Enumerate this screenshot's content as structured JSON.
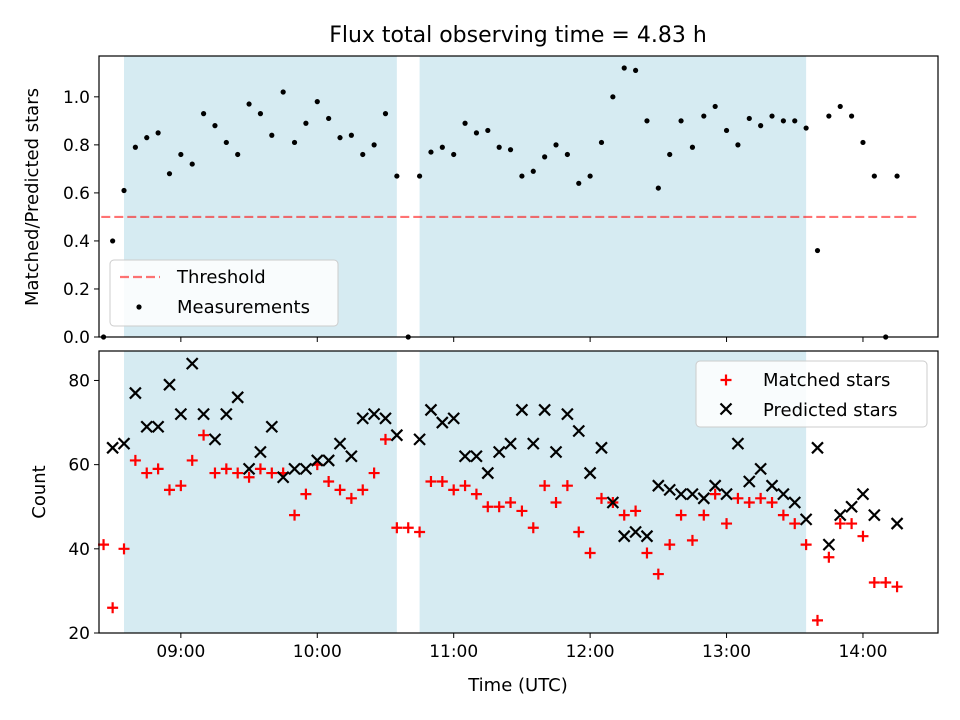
{
  "title": "Flux total observing time = 4.83 h",
  "colors": {
    "shade": "#add8e6",
    "threshold": "#ff0000",
    "measurements": "#000000",
    "matched": "#ff0000",
    "predicted": "#000000"
  },
  "chart_data": [
    {
      "type": "scatter",
      "ylabel": "Matched/Predicted stars",
      "xlim": [
        "08:24",
        "14:33"
      ],
      "ylim": [
        0,
        1.17
      ],
      "yticks": [
        "0.0",
        "0.2",
        "0.4",
        "0.6",
        "0.8",
        "1.0"
      ],
      "legend": {
        "position": "lower-left",
        "entries": [
          "Threshold",
          "Measurements"
        ]
      },
      "shaded_intervals": [
        [
          "08:35",
          "10:35"
        ],
        [
          "10:45",
          "13:35"
        ]
      ],
      "threshold": {
        "name": "Threshold",
        "y": 0.5,
        "x_range": [
          "08:25",
          "14:25"
        ]
      },
      "series": [
        {
          "name": "Measurements",
          "marker": "dot",
          "points": [
            [
              "08:26",
              0.0
            ],
            [
              "08:30",
              0.4
            ],
            [
              "08:35",
              0.61
            ],
            [
              "08:40",
              0.79
            ],
            [
              "08:45",
              0.83
            ],
            [
              "08:50",
              0.85
            ],
            [
              "08:55",
              0.68
            ],
            [
              "09:00",
              0.76
            ],
            [
              "09:05",
              0.72
            ],
            [
              "09:10",
              0.93
            ],
            [
              "09:15",
              0.88
            ],
            [
              "09:20",
              0.81
            ],
            [
              "09:25",
              0.76
            ],
            [
              "09:30",
              0.97
            ],
            [
              "09:35",
              0.93
            ],
            [
              "09:40",
              0.84
            ],
            [
              "09:45",
              1.02
            ],
            [
              "09:50",
              0.81
            ],
            [
              "09:55",
              0.89
            ],
            [
              "10:00",
              0.98
            ],
            [
              "10:05",
              0.91
            ],
            [
              "10:10",
              0.83
            ],
            [
              "10:15",
              0.84
            ],
            [
              "10:20",
              0.76
            ],
            [
              "10:25",
              0.8
            ],
            [
              "10:30",
              0.93
            ],
            [
              "10:35",
              0.67
            ],
            [
              "10:40",
              0.0
            ],
            [
              "10:45",
              0.67
            ],
            [
              "10:50",
              0.77
            ],
            [
              "10:55",
              0.79
            ],
            [
              "11:00",
              0.76
            ],
            [
              "11:05",
              0.89
            ],
            [
              "11:10",
              0.85
            ],
            [
              "11:15",
              0.86
            ],
            [
              "11:20",
              0.79
            ],
            [
              "11:25",
              0.78
            ],
            [
              "11:30",
              0.67
            ],
            [
              "11:35",
              0.69
            ],
            [
              "11:40",
              0.75
            ],
            [
              "11:45",
              0.8
            ],
            [
              "11:50",
              0.76
            ],
            [
              "11:55",
              0.64
            ],
            [
              "12:00",
              0.67
            ],
            [
              "12:05",
              0.81
            ],
            [
              "12:10",
              1.0
            ],
            [
              "12:15",
              1.12
            ],
            [
              "12:20",
              1.11
            ],
            [
              "12:25",
              0.9
            ],
            [
              "12:30",
              0.62
            ],
            [
              "12:35",
              0.76
            ],
            [
              "12:40",
              0.9
            ],
            [
              "12:45",
              0.79
            ],
            [
              "12:50",
              0.92
            ],
            [
              "12:55",
              0.96
            ],
            [
              "13:00",
              0.86
            ],
            [
              "13:05",
              0.8
            ],
            [
              "13:10",
              0.91
            ],
            [
              "13:15",
              0.88
            ],
            [
              "13:20",
              0.92
            ],
            [
              "13:25",
              0.9
            ],
            [
              "13:30",
              0.9
            ],
            [
              "13:35",
              0.87
            ],
            [
              "13:40",
              0.36
            ],
            [
              "13:45",
              0.92
            ],
            [
              "13:50",
              0.96
            ],
            [
              "13:55",
              0.92
            ],
            [
              "14:00",
              0.81
            ],
            [
              "14:05",
              0.67
            ],
            [
              "14:10",
              0.0
            ],
            [
              "14:15",
              0.67
            ]
          ]
        }
      ]
    },
    {
      "type": "scatter",
      "xlabel": "Time (UTC)",
      "ylabel": "Count",
      "xlim": [
        "08:24",
        "14:33"
      ],
      "ylim": [
        20,
        87
      ],
      "yticks": [
        "20",
        "40",
        "60",
        "80"
      ],
      "xticks": [
        "09:00",
        "10:00",
        "11:00",
        "12:00",
        "13:00",
        "14:00"
      ],
      "legend": {
        "position": "upper-right",
        "entries": [
          "Matched stars",
          "Predicted stars"
        ]
      },
      "shaded_intervals": [
        [
          "08:35",
          "10:35"
        ],
        [
          "10:45",
          "13:35"
        ]
      ],
      "series": [
        {
          "name": "Matched stars",
          "marker": "plus",
          "points": [
            [
              "08:26",
              41
            ],
            [
              "08:30",
              26
            ],
            [
              "08:35",
              40
            ],
            [
              "08:40",
              61
            ],
            [
              "08:45",
              58
            ],
            [
              "08:50",
              59
            ],
            [
              "08:55",
              54
            ],
            [
              "09:00",
              55
            ],
            [
              "09:05",
              61
            ],
            [
              "09:10",
              67
            ],
            [
              "09:15",
              58
            ],
            [
              "09:20",
              59
            ],
            [
              "09:25",
              58
            ],
            [
              "09:30",
              57
            ],
            [
              "09:35",
              59
            ],
            [
              "09:40",
              58
            ],
            [
              "09:45",
              58
            ],
            [
              "09:50",
              48
            ],
            [
              "09:55",
              53
            ],
            [
              "10:00",
              60
            ],
            [
              "10:05",
              56
            ],
            [
              "10:10",
              54
            ],
            [
              "10:15",
              52
            ],
            [
              "10:20",
              54
            ],
            [
              "10:25",
              58
            ],
            [
              "10:30",
              66
            ],
            [
              "10:35",
              45
            ],
            [
              "10:40",
              45
            ],
            [
              "10:45",
              44
            ],
            [
              "10:50",
              56
            ],
            [
              "10:55",
              56
            ],
            [
              "11:00",
              54
            ],
            [
              "11:05",
              55
            ],
            [
              "11:10",
              53
            ],
            [
              "11:15",
              50
            ],
            [
              "11:20",
              50
            ],
            [
              "11:25",
              51
            ],
            [
              "11:30",
              49
            ],
            [
              "11:35",
              45
            ],
            [
              "11:40",
              55
            ],
            [
              "11:45",
              51
            ],
            [
              "11:50",
              55
            ],
            [
              "11:55",
              44
            ],
            [
              "12:00",
              39
            ],
            [
              "12:05",
              52
            ],
            [
              "12:10",
              51
            ],
            [
              "12:15",
              48
            ],
            [
              "12:20",
              49
            ],
            [
              "12:25",
              39
            ],
            [
              "12:30",
              34
            ],
            [
              "12:35",
              41
            ],
            [
              "12:40",
              48
            ],
            [
              "12:45",
              42
            ],
            [
              "12:50",
              48
            ],
            [
              "12:55",
              53
            ],
            [
              "13:00",
              46
            ],
            [
              "13:05",
              52
            ],
            [
              "13:10",
              51
            ],
            [
              "13:15",
              52
            ],
            [
              "13:20",
              51
            ],
            [
              "13:25",
              48
            ],
            [
              "13:30",
              46
            ],
            [
              "13:35",
              41
            ],
            [
              "13:40",
              23
            ],
            [
              "13:45",
              38
            ],
            [
              "13:50",
              46
            ],
            [
              "13:55",
              46
            ],
            [
              "14:00",
              43
            ],
            [
              "14:05",
              32
            ],
            [
              "14:10",
              32
            ],
            [
              "14:15",
              31
            ]
          ]
        },
        {
          "name": "Predicted stars",
          "marker": "x",
          "points": [
            [
              "08:30",
              64
            ],
            [
              "08:35",
              65
            ],
            [
              "08:40",
              77
            ],
            [
              "08:45",
              69
            ],
            [
              "08:50",
              69
            ],
            [
              "08:55",
              79
            ],
            [
              "09:00",
              72
            ],
            [
              "09:05",
              84
            ],
            [
              "09:10",
              72
            ],
            [
              "09:15",
              66
            ],
            [
              "09:20",
              72
            ],
            [
              "09:25",
              76
            ],
            [
              "09:30",
              59
            ],
            [
              "09:35",
              63
            ],
            [
              "09:40",
              69
            ],
            [
              "09:45",
              57
            ],
            [
              "09:50",
              59
            ],
            [
              "09:55",
              59
            ],
            [
              "10:00",
              61
            ],
            [
              "10:05",
              61
            ],
            [
              "10:10",
              65
            ],
            [
              "10:15",
              62
            ],
            [
              "10:20",
              71
            ],
            [
              "10:25",
              72
            ],
            [
              "10:30",
              71
            ],
            [
              "10:35",
              67
            ],
            [
              "10:45",
              66
            ],
            [
              "10:50",
              73
            ],
            [
              "10:55",
              70
            ],
            [
              "11:00",
              71
            ],
            [
              "11:05",
              62
            ],
            [
              "11:10",
              62
            ],
            [
              "11:15",
              58
            ],
            [
              "11:20",
              63
            ],
            [
              "11:25",
              65
            ],
            [
              "11:30",
              73
            ],
            [
              "11:35",
              65
            ],
            [
              "11:40",
              73
            ],
            [
              "11:45",
              63
            ],
            [
              "11:50",
              72
            ],
            [
              "11:55",
              68
            ],
            [
              "12:00",
              58
            ],
            [
              "12:05",
              64
            ],
            [
              "12:10",
              51
            ],
            [
              "12:15",
              43
            ],
            [
              "12:20",
              44
            ],
            [
              "12:25",
              43
            ],
            [
              "12:30",
              55
            ],
            [
              "12:35",
              54
            ],
            [
              "12:40",
              53
            ],
            [
              "12:45",
              53
            ],
            [
              "12:50",
              52
            ],
            [
              "12:55",
              55
            ],
            [
              "13:00",
              53
            ],
            [
              "13:05",
              65
            ],
            [
              "13:10",
              56
            ],
            [
              "13:15",
              59
            ],
            [
              "13:20",
              55
            ],
            [
              "13:25",
              53
            ],
            [
              "13:30",
              51
            ],
            [
              "13:35",
              47
            ],
            [
              "13:40",
              64
            ],
            [
              "13:45",
              41
            ],
            [
              "13:50",
              48
            ],
            [
              "13:55",
              50
            ],
            [
              "14:00",
              53
            ],
            [
              "14:05",
              48
            ],
            [
              "14:15",
              46
            ]
          ]
        }
      ]
    }
  ]
}
